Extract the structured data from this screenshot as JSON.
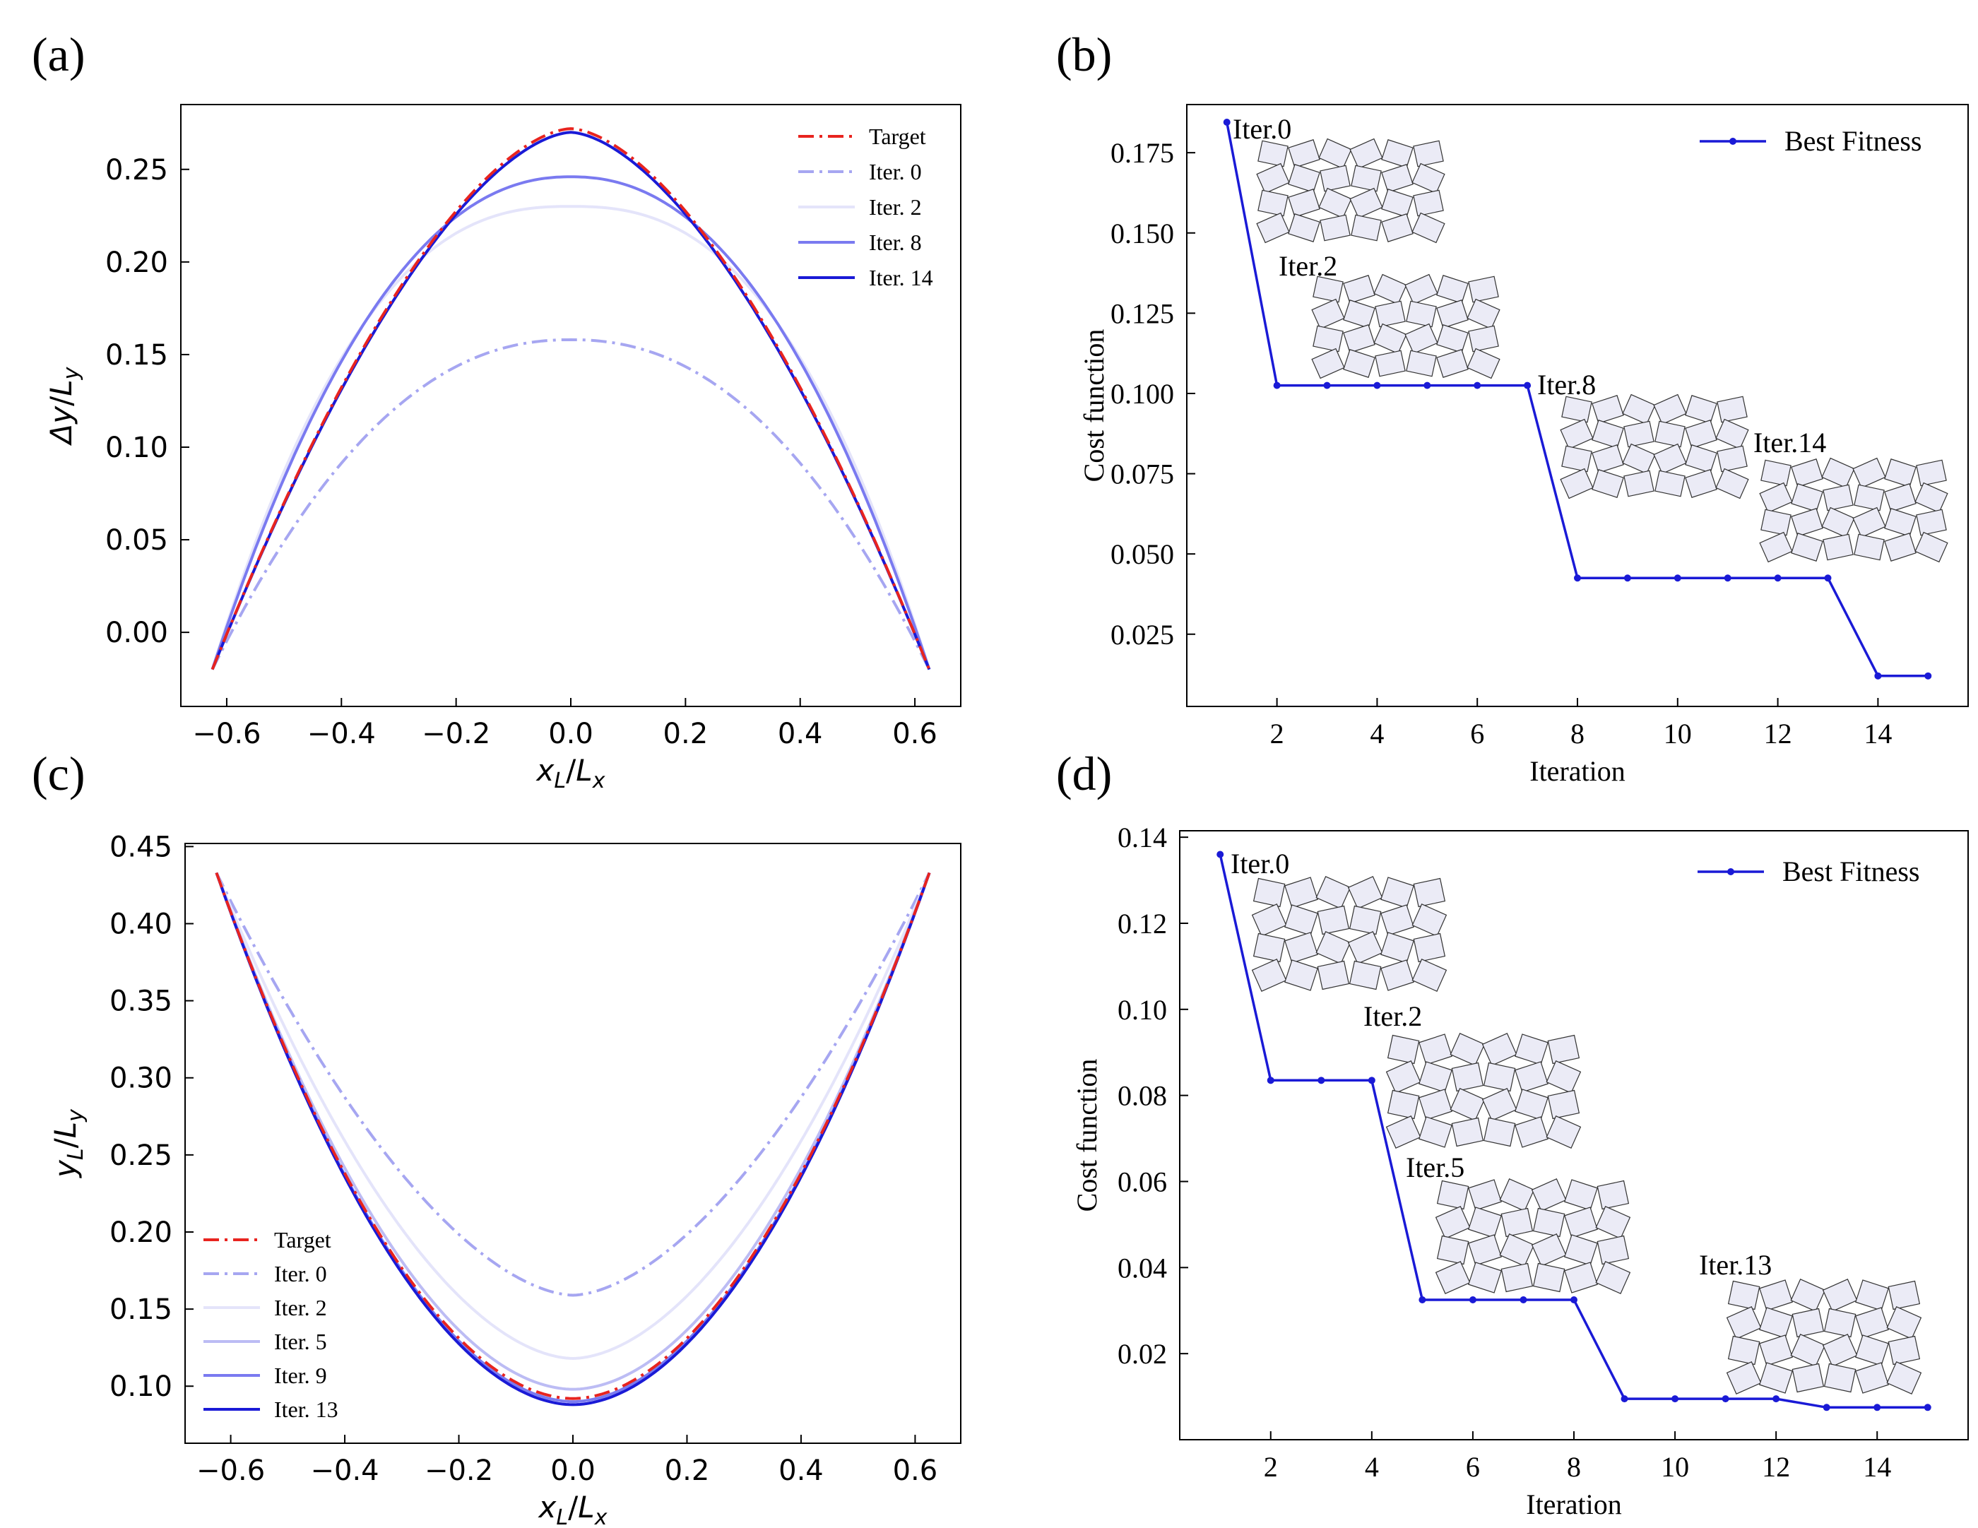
{
  "panels": {
    "a": {
      "label": "(a)"
    },
    "b": {
      "label": "(b)"
    },
    "c": {
      "label": "(c)"
    },
    "d": {
      "label": "(d)"
    }
  },
  "chart_data": [
    {
      "id": "a",
      "type": "line",
      "xlabel": "x_L/L_x",
      "ylabel": "Δy/L_y",
      "xlim": [
        -0.68,
        0.68
      ],
      "ylim": [
        -0.04,
        0.285
      ],
      "xticks": [
        -0.6,
        -0.4,
        -0.2,
        0.0,
        0.2,
        0.4,
        0.6
      ],
      "xtick_labels": [
        "−0.6",
        "−0.4",
        "−0.2",
        "0.0",
        "0.2",
        "0.4",
        "0.6"
      ],
      "yticks": [
        0.0,
        0.05,
        0.1,
        0.15,
        0.2,
        0.25
      ],
      "ytick_labels": [
        "0.00",
        "0.05",
        "0.10",
        "0.15",
        "0.20",
        "0.25"
      ],
      "legend_position": "top-right",
      "series": [
        {
          "name": "Target",
          "color": "#e8241f",
          "dash": "dashdot",
          "opacity": 1.0,
          "peak": 0.272,
          "power": 1.65
        },
        {
          "name": "Iter. 0",
          "color": "#9c9cf0",
          "dash": "dashdot",
          "opacity": 0.9,
          "peak": 0.158,
          "power": 2.2
        },
        {
          "name": "Iter. 2",
          "color": "#e4e4fa",
          "dash": "solid",
          "opacity": 1.0,
          "peak": 0.23,
          "power": 2.5
        },
        {
          "name": "Iter. 8",
          "color": "#7a7af0",
          "dash": "solid",
          "opacity": 1.0,
          "peak": 0.246,
          "power": 2.2
        },
        {
          "name": "Iter. 14",
          "color": "#1a1ad6",
          "dash": "solid",
          "opacity": 1.0,
          "peak": 0.27,
          "power": 1.65
        }
      ],
      "x_range": [
        -0.625,
        0.625
      ],
      "end_value": -0.02
    },
    {
      "id": "b",
      "type": "line",
      "xlabel": "Iteration",
      "ylabel": "Cost function",
      "xlim": [
        0.2,
        15.8
      ],
      "ylim": [
        0.0025,
        0.19
      ],
      "xticks": [
        2,
        4,
        6,
        8,
        10,
        12,
        14
      ],
      "xtick_labels": [
        "2",
        "4",
        "6",
        "8",
        "10",
        "12",
        "14"
      ],
      "yticks": [
        0.025,
        0.05,
        0.075,
        0.1,
        0.125,
        0.15,
        0.175
      ],
      "ytick_labels": [
        "0.025",
        "0.050",
        "0.075",
        "0.100",
        "0.125",
        "0.150",
        "0.175"
      ],
      "legend_position": "top-right",
      "series": [
        {
          "name": "Best Fitness",
          "color": "#1a1ad6",
          "x": [
            1,
            2,
            3,
            4,
            5,
            6,
            7,
            8,
            9,
            10,
            11,
            12,
            13,
            14,
            15
          ],
          "y": [
            0.1845,
            0.1025,
            0.1025,
            0.1025,
            0.1025,
            0.1025,
            0.1025,
            0.0425,
            0.0425,
            0.0425,
            0.0425,
            0.0425,
            0.0425,
            0.012,
            0.012
          ]
        }
      ],
      "annotations": [
        "Iter.0",
        "Iter.2",
        "Iter.8",
        "Iter.14"
      ]
    },
    {
      "id": "c",
      "type": "line",
      "xlabel": "x_L/L_x",
      "ylabel": "y_L/L_y",
      "xlim": [
        -0.68,
        0.68
      ],
      "ylim": [
        0.063,
        0.452
      ],
      "xticks": [
        -0.6,
        -0.4,
        -0.2,
        0.0,
        0.2,
        0.4,
        0.6
      ],
      "xtick_labels": [
        "−0.6",
        "−0.4",
        "−0.2",
        "0.0",
        "0.2",
        "0.4",
        "0.6"
      ],
      "yticks": [
        0.1,
        0.15,
        0.2,
        0.25,
        0.3,
        0.35,
        0.4,
        0.45
      ],
      "ytick_labels": [
        "0.10",
        "0.15",
        "0.20",
        "0.25",
        "0.30",
        "0.35",
        "0.40",
        "0.45"
      ],
      "legend_position": "bottom-left",
      "series": [
        {
          "name": "Target",
          "color": "#e8241f",
          "dash": "dashdot",
          "opacity": 1.0,
          "bottom": 0.092,
          "power": 1.9
        },
        {
          "name": "Iter. 0",
          "color": "#9c9cf0",
          "dash": "dashdot",
          "opacity": 0.9,
          "bottom": 0.159,
          "power": 1.7
        },
        {
          "name": "Iter. 2",
          "color": "#e4e4fa",
          "dash": "solid",
          "opacity": 1.0,
          "bottom": 0.118,
          "power": 1.8
        },
        {
          "name": "Iter. 5",
          "color": "#bcbcf4",
          "dash": "solid",
          "opacity": 1.0,
          "bottom": 0.098,
          "power": 1.9
        },
        {
          "name": "Iter. 9",
          "color": "#7a7af0",
          "dash": "solid",
          "opacity": 1.0,
          "bottom": 0.09,
          "power": 1.9
        },
        {
          "name": "Iter. 13",
          "color": "#1a1ad6",
          "dash": "solid",
          "opacity": 1.0,
          "bottom": 0.088,
          "power": 1.9
        }
      ],
      "x_range": [
        -0.625,
        0.625
      ],
      "end_value": 0.433
    },
    {
      "id": "d",
      "type": "line",
      "xlabel": "Iteration",
      "ylabel": "Cost function",
      "xlim": [
        0.2,
        15.8
      ],
      "ylim": [
        0.0,
        0.1415
      ],
      "xticks": [
        2,
        4,
        6,
        8,
        10,
        12,
        14
      ],
      "xtick_labels": [
        "2",
        "4",
        "6",
        "8",
        "10",
        "12",
        "14"
      ],
      "yticks": [
        0.02,
        0.04,
        0.06,
        0.08,
        0.1,
        0.12,
        0.14
      ],
      "ytick_labels": [
        "0.02",
        "0.04",
        "0.06",
        "0.08",
        "0.10",
        "0.12",
        "0.14"
      ],
      "legend_position": "top-right",
      "series": [
        {
          "name": "Best Fitness",
          "color": "#1a1ad6",
          "x": [
            1,
            2,
            3,
            4,
            5,
            6,
            7,
            8,
            9,
            10,
            11,
            12,
            13,
            14,
            15
          ],
          "y": [
            0.136,
            0.0835,
            0.0835,
            0.0835,
            0.0325,
            0.0325,
            0.0325,
            0.0325,
            0.0095,
            0.0095,
            0.0095,
            0.0095,
            0.0075,
            0.0075,
            0.0075
          ]
        }
      ],
      "annotations": [
        "Iter.0",
        "Iter.2",
        "Iter.5",
        "Iter.13"
      ]
    }
  ]
}
